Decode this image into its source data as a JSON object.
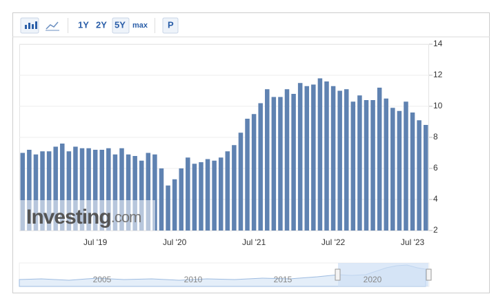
{
  "toolbar": {
    "ranges": [
      "1Y",
      "2Y",
      "5Y",
      "max"
    ],
    "p_button": "P"
  },
  "watermark": {
    "brand": "Investing",
    "suffix": ".com"
  },
  "navigator": {
    "labels": [
      "2005",
      "2010",
      "2015",
      "2020"
    ]
  },
  "chart_data": {
    "type": "bar",
    "color": "#5f82b1",
    "categories": [
      null,
      null,
      null,
      null,
      null,
      null,
      null,
      null,
      null,
      null,
      null,
      "Jul '19",
      null,
      null,
      null,
      null,
      null,
      null,
      null,
      null,
      null,
      null,
      null,
      "Jul '20",
      null,
      null,
      null,
      null,
      null,
      null,
      null,
      null,
      null,
      null,
      null,
      "Jul '21",
      null,
      null,
      null,
      null,
      null,
      null,
      null,
      null,
      null,
      null,
      null,
      "Jul '22",
      null,
      null,
      null,
      null,
      null,
      null,
      null,
      null,
      null,
      null,
      null,
      "Jul '23",
      null,
      null
    ],
    "values": [
      7.0,
      7.2,
      6.9,
      7.1,
      7.1,
      7.4,
      7.6,
      7.1,
      7.4,
      7.3,
      7.3,
      7.2,
      7.2,
      7.3,
      6.9,
      7.3,
      6.9,
      6.8,
      6.5,
      7.0,
      6.9,
      6.0,
      4.9,
      5.3,
      6.0,
      6.7,
      6.3,
      6.4,
      6.6,
      6.5,
      6.7,
      7.1,
      7.5,
      8.3,
      9.2,
      9.5,
      10.2,
      11.1,
      10.6,
      10.6,
      11.1,
      10.8,
      11.5,
      11.3,
      11.4,
      11.8,
      11.6,
      11.3,
      11.0,
      11.1,
      10.3,
      10.7,
      10.4,
      10.4,
      11.2,
      10.5,
      9.9,
      9.7,
      10.3,
      9.6,
      9.1,
      8.8
    ],
    "ylim": [
      2,
      14
    ],
    "yticks": [
      2,
      4,
      6,
      8,
      10,
      12,
      14
    ],
    "grid": true
  }
}
